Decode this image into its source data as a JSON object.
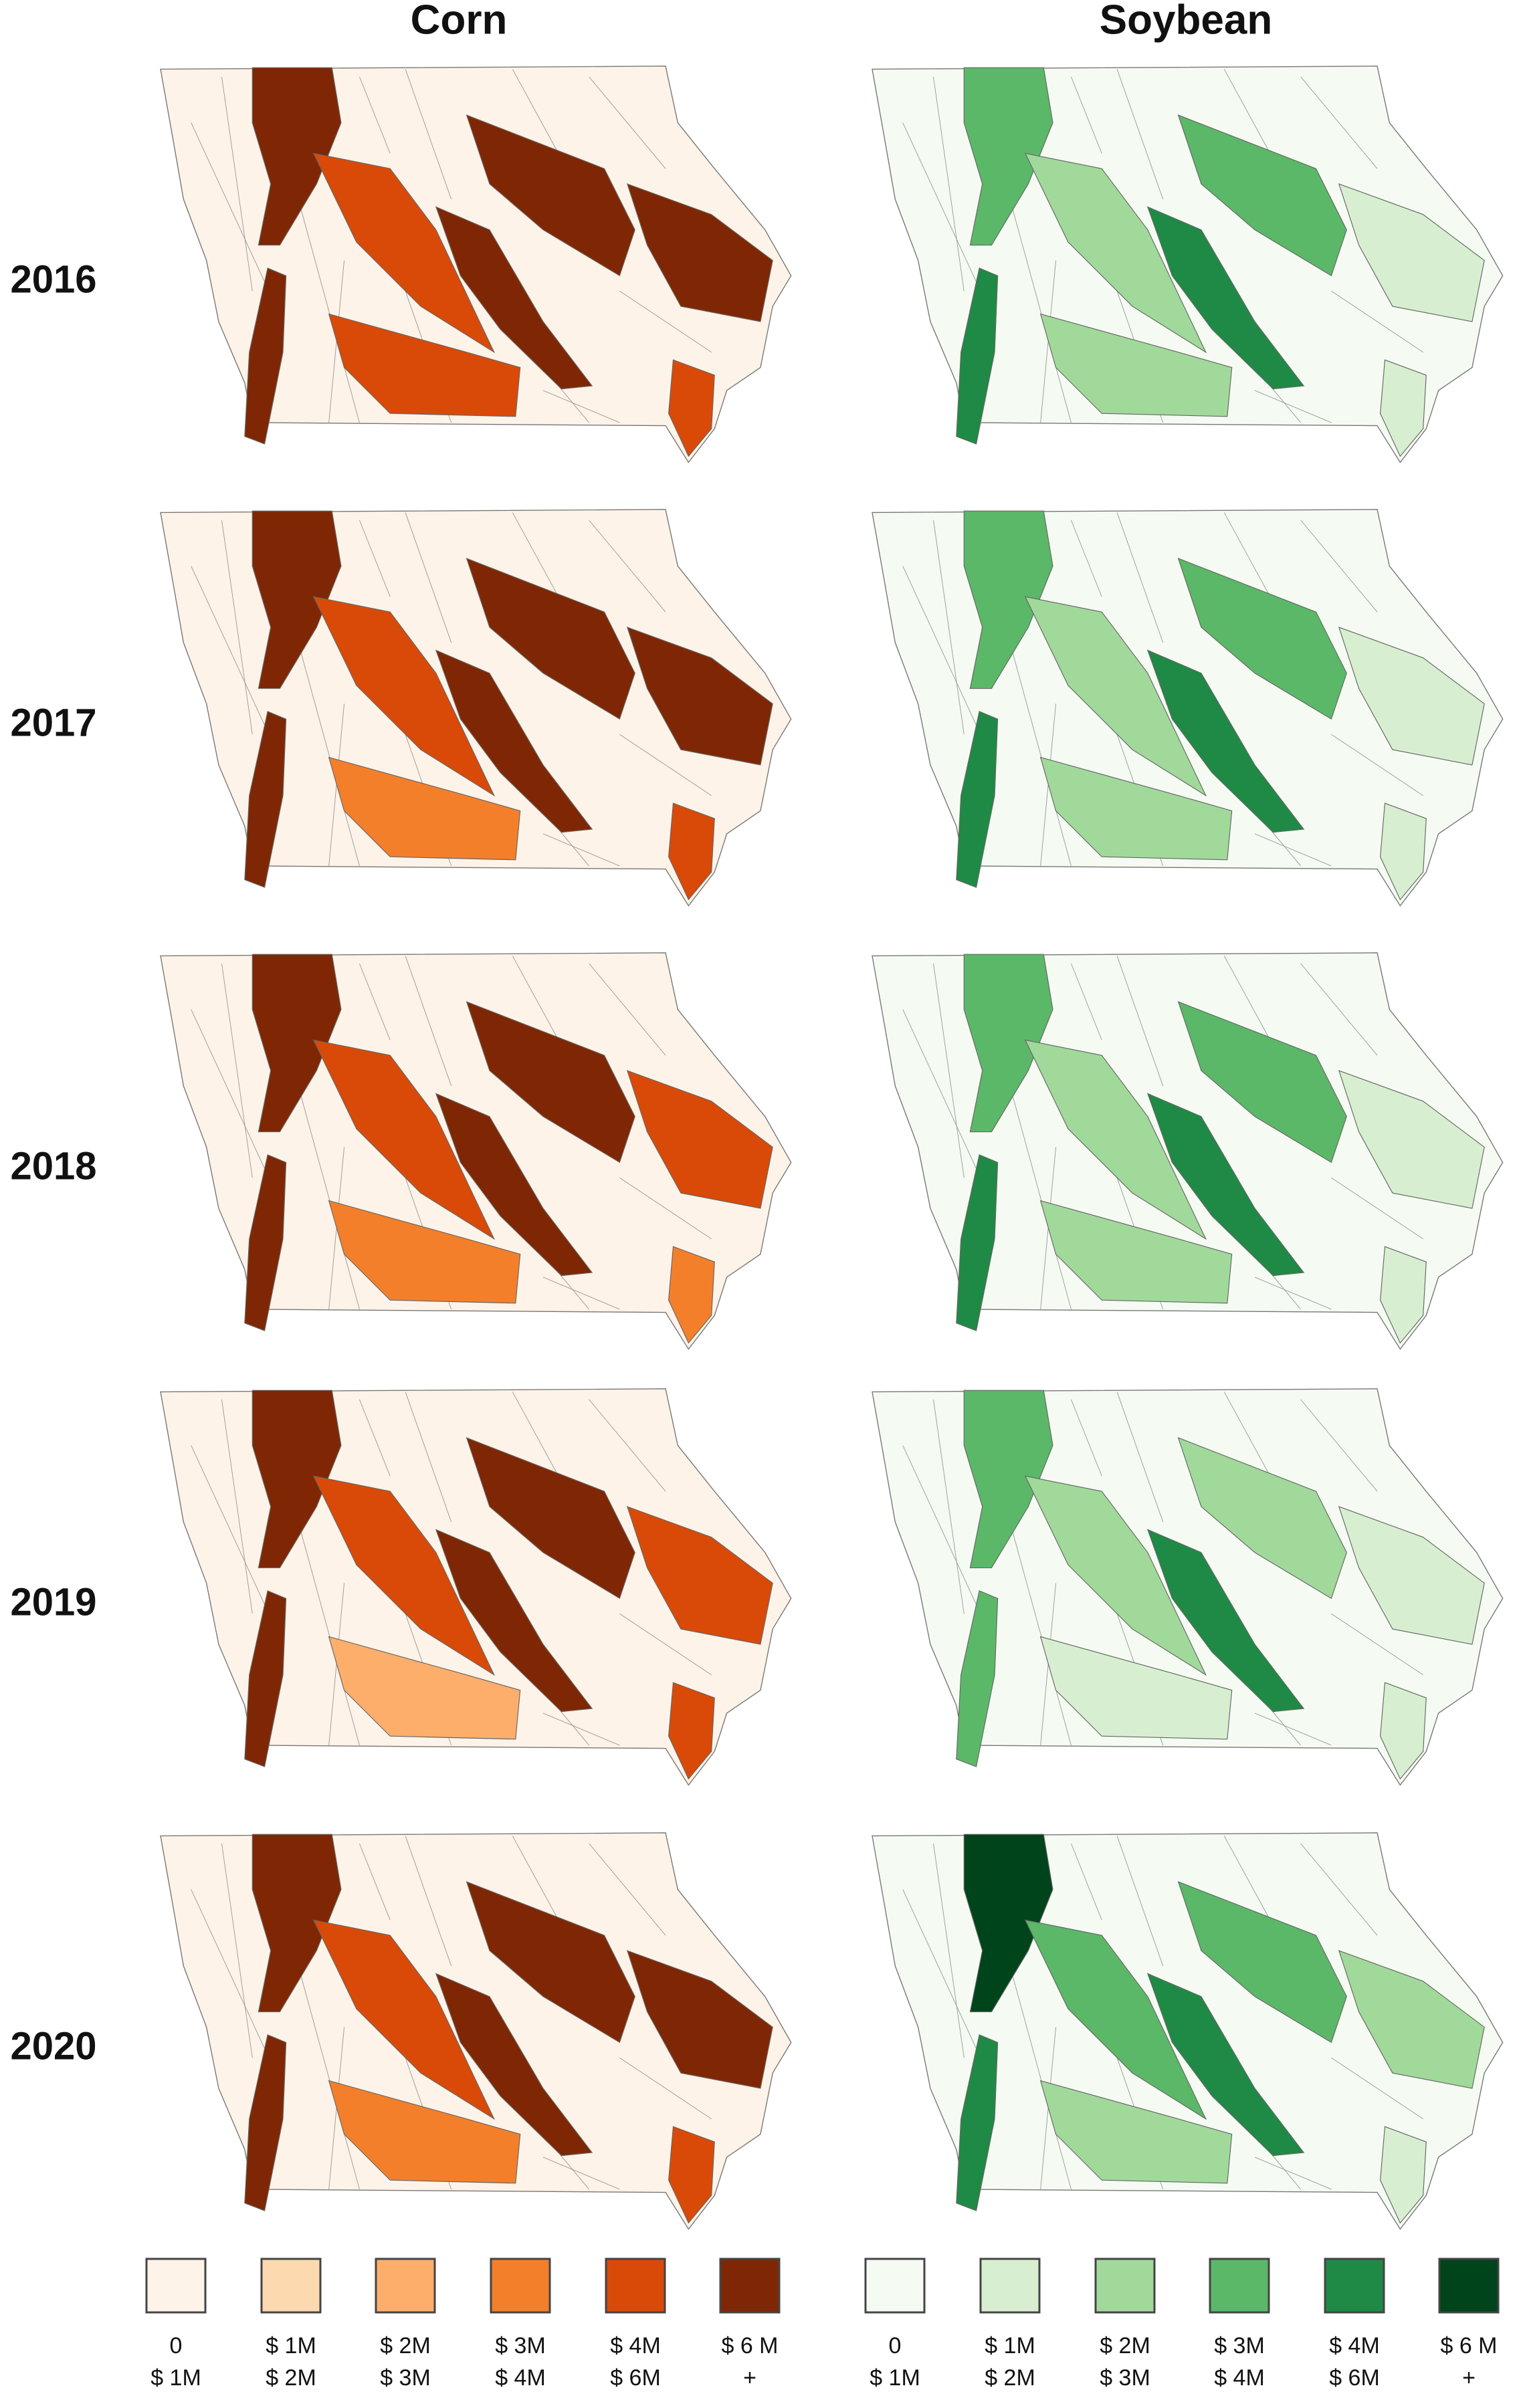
{
  "rows": [
    "2016",
    "2017",
    "2018",
    "2019",
    "2020"
  ],
  "columns": [
    {
      "title": "Corn",
      "colors": [
        "#fef3e8",
        "#fdd9b0",
        "#fdae6b",
        "#f47f2b",
        "#d94a08",
        "#7f2704"
      ],
      "legend": [
        [
          "0",
          "$ 1M"
        ],
        [
          "$ 1M",
          "$ 2M"
        ],
        [
          "$ 2M",
          "$ 3M"
        ],
        [
          "$ 3M",
          "$ 4M"
        ],
        [
          "$ 4M",
          "$ 6M"
        ],
        [
          "$ 6 M",
          "+"
        ]
      ],
      "maps": [
        [
          5,
          5,
          4,
          5,
          5,
          5,
          4,
          4
        ],
        [
          5,
          5,
          4,
          5,
          5,
          5,
          3,
          4
        ],
        [
          5,
          5,
          4,
          5,
          5,
          4,
          3,
          3
        ],
        [
          5,
          5,
          4,
          5,
          5,
          4,
          2,
          4
        ],
        [
          5,
          5,
          4,
          5,
          5,
          5,
          3,
          4
        ]
      ]
    },
    {
      "title": "Soybean",
      "colors": [
        "#f5fbf2",
        "#d7efd0",
        "#a1d99b",
        "#5ab868",
        "#1e8a45",
        "#00441b"
      ],
      "legend": [
        [
          "0",
          "$ 1M"
        ],
        [
          "$ 1M",
          "$ 2M"
        ],
        [
          "$ 2M",
          "$ 3M"
        ],
        [
          "$ 3M",
          "$ 4M"
        ],
        [
          "$ 4M",
          "$ 6M"
        ],
        [
          "$ 6 M",
          "+"
        ]
      ],
      "maps": [
        [
          3,
          4,
          2,
          4,
          3,
          1,
          2,
          1
        ],
        [
          3,
          4,
          2,
          4,
          3,
          1,
          2,
          1
        ],
        [
          3,
          4,
          2,
          4,
          3,
          1,
          2,
          1
        ],
        [
          3,
          3,
          2,
          4,
          2,
          1,
          1,
          1
        ],
        [
          5,
          4,
          3,
          4,
          3,
          2,
          2,
          1
        ]
      ]
    }
  ]
}
